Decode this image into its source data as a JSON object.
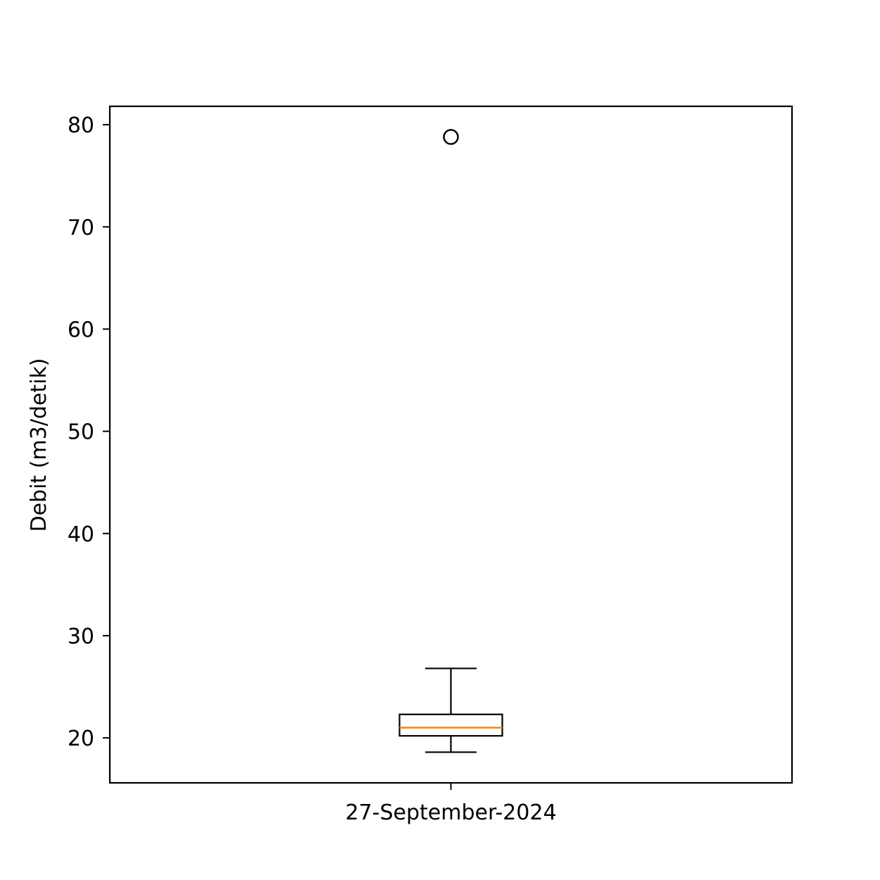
{
  "chart_data": {
    "type": "box",
    "categories": [
      "27-September-2024"
    ],
    "boxes": [
      {
        "category": "27-September-2024",
        "whisker_low": 18.6,
        "q1": 20.2,
        "median": 21.0,
        "q3": 22.3,
        "whisker_high": 26.8,
        "outliers": [
          78.8
        ]
      }
    ],
    "xlabel": "",
    "ylabel": "Debit (m3/detik)",
    "ylim": [
      15.6,
      81.8
    ],
    "yticks": [
      20,
      30,
      40,
      50,
      60,
      70,
      80
    ],
    "grid": false,
    "colors": {
      "median": "#ff7f0e",
      "box": "#000000",
      "axes": "#000000"
    }
  }
}
